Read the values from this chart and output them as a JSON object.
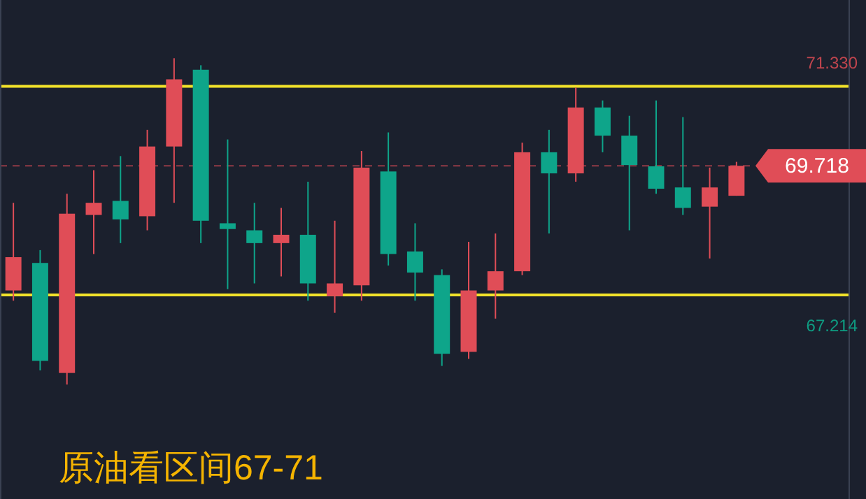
{
  "chart_data": {
    "type": "candlestick",
    "title": "原油看区间67-71",
    "categories": [
      null,
      null,
      null,
      null,
      null,
      null,
      null,
      null,
      null,
      null,
      null,
      null,
      null,
      null,
      null,
      null,
      null,
      null,
      null,
      null,
      null,
      null,
      null,
      null,
      null,
      null,
      null,
      null
    ],
    "ohlc": [
      [
        67.77,
        69.14,
        67.61,
        68.29
      ],
      [
        68.2,
        68.4,
        66.52,
        66.67
      ],
      [
        66.48,
        69.28,
        66.3,
        68.97
      ],
      [
        68.95,
        69.65,
        68.34,
        69.14
      ],
      [
        69.17,
        69.87,
        68.51,
        68.88
      ],
      [
        68.93,
        70.28,
        68.71,
        70.02
      ],
      [
        70.02,
        71.4,
        69.14,
        71.07
      ],
      [
        71.22,
        71.29,
        68.51,
        68.86
      ],
      [
        68.82,
        70.13,
        67.79,
        68.73
      ],
      [
        68.71,
        69.14,
        67.88,
        68.51
      ],
      [
        68.51,
        69.06,
        67.99,
        68.64
      ],
      [
        68.64,
        69.47,
        67.61,
        67.88
      ],
      [
        67.68,
        68.86,
        67.42,
        67.88
      ],
      [
        67.85,
        69.95,
        67.61,
        69.69
      ],
      [
        69.63,
        70.24,
        68.16,
        68.34
      ],
      [
        68.38,
        68.82,
        67.61,
        68.05
      ],
      [
        68.01,
        68.1,
        66.59,
        66.78
      ],
      [
        66.81,
        68.53,
        66.7,
        67.77
      ],
      [
        67.77,
        68.66,
        67.33,
        68.07
      ],
      [
        68.07,
        70.08,
        68.01,
        69.93
      ],
      [
        69.93,
        70.28,
        68.66,
        69.6
      ],
      [
        69.6,
        70.94,
        69.47,
        70.63
      ],
      [
        70.63,
        70.74,
        69.93,
        70.19
      ],
      [
        70.19,
        70.5,
        68.71,
        69.73
      ],
      [
        69.71,
        70.74,
        69.28,
        69.36
      ],
      [
        69.38,
        70.48,
        68.95,
        69.06
      ],
      [
        69.08,
        69.69,
        68.27,
        69.38
      ],
      [
        69.25,
        69.78,
        69.25,
        69.718
      ]
    ],
    "colors": [
      "#e04d57",
      "#0ea58a",
      "#e04d57",
      "#e04d57",
      "#0ea58a",
      "#e04d57",
      "#e04d57",
      "#0ea58a",
      "#0ea58a",
      "#0ea58a",
      "#e04d57",
      "#0ea58a",
      "#e04d57",
      "#e04d57",
      "#0ea58a",
      "#0ea58a",
      "#0ea58a",
      "#e04d57",
      "#e04d57",
      "#e04d57",
      "#0ea58a",
      "#e04d57",
      "#0ea58a",
      "#0ea58a",
      "#0ea58a",
      "#0ea58a",
      "#e04d57",
      "#e04d57"
    ],
    "ylim": [
      64.51,
      72.31
    ],
    "yticks": [
      {
        "value": 71.33,
        "label": "71.330"
      },
      {
        "value": 67.214,
        "label": "67.214"
      }
    ],
    "ref_lines": [
      {
        "axis": "y",
        "value": 70.96,
        "color": "#f2e22a",
        "line_style": "solid"
      },
      {
        "axis": "y",
        "value": 67.7,
        "color": "#f2e22a",
        "line_style": "solid"
      },
      {
        "axis": "y",
        "value": 69.718,
        "label": "69.718",
        "color": "#e04d57",
        "line_style": "dashed"
      }
    ]
  }
}
